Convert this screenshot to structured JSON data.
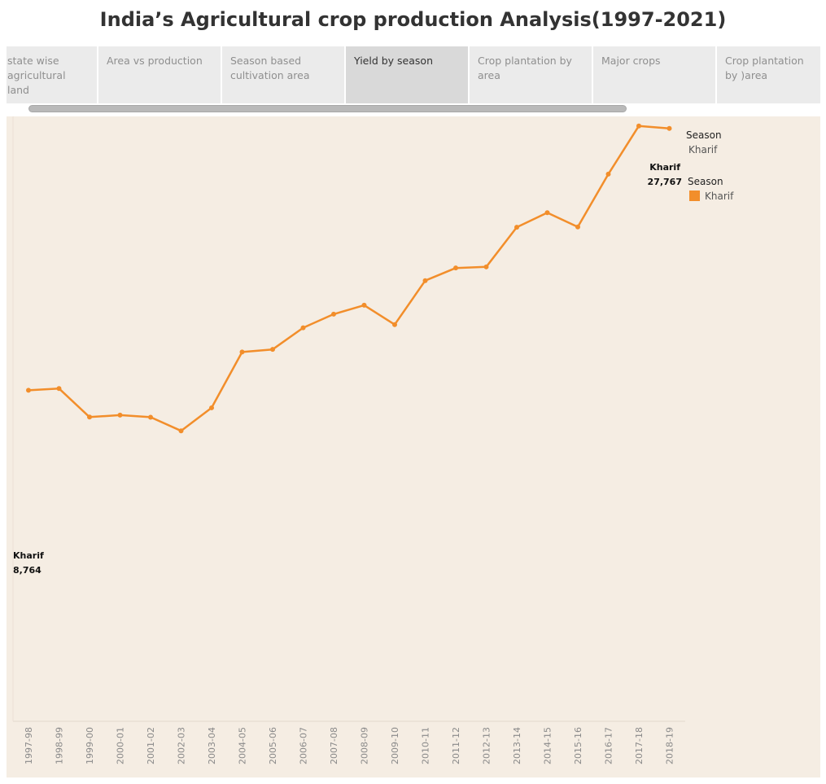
{
  "title": "India’s Agricultural crop production Analysis(1997-2021)",
  "tabs": [
    {
      "label": "state wise agricultural land"
    },
    {
      "label": "Area vs production"
    },
    {
      "label": "Season based cultivation area"
    },
    {
      "label": "Yield by season"
    },
    {
      "label": "Crop plantation by area"
    },
    {
      "label": "Major crops"
    },
    {
      "label": "Crop plantation by )area"
    }
  ],
  "active_tab": "Yield by season",
  "legend": {
    "filter_title": "Season",
    "filter_value": "Kharif",
    "color_title": "Season",
    "color_item": "Kharif"
  },
  "start_label": {
    "series": "Kharif",
    "value": "8,764"
  },
  "end_label": {
    "series": "Kharif",
    "value": "27,767"
  },
  "colors": {
    "line": "#f28e2b",
    "background": "#f5ede3"
  },
  "chart_data": {
    "type": "line",
    "categories": [
      "1997-98",
      "1998-99",
      "1999-00",
      "2000-01",
      "2001-02",
      "2002-03",
      "2003-04",
      "2004-05",
      "2005-06",
      "2006-07",
      "2007-08",
      "2008-09",
      "2009-10",
      "2010-11",
      "2011-12",
      "2012-13",
      "2013-14",
      "2014-15",
      "2015-16",
      "2016-17",
      "2017-18",
      "2018-19"
    ],
    "series": [
      {
        "name": "Kharif",
        "values": [
          8764,
          8890,
          6820,
          6960,
          6810,
          5820,
          7490,
          11540,
          11730,
          13300,
          14290,
          14940,
          13530,
          16720,
          17640,
          17720,
          20600,
          21650,
          20620,
          24450,
          27950,
          27767
        ]
      }
    ],
    "title": "India’s Agricultural crop production Analysis(1997-2021)",
    "xlabel": "",
    "ylabel": "",
    "ylim": [
      -22000,
      30000
    ],
    "grid": false,
    "legend": "top-right"
  }
}
